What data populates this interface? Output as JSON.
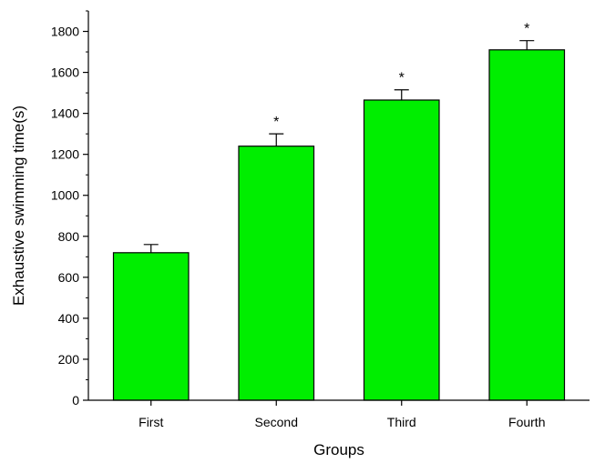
{
  "chart_data": {
    "type": "bar",
    "categories": [
      "First",
      "Second",
      "Third",
      "Fourth"
    ],
    "values": [
      720,
      1240,
      1465,
      1710
    ],
    "errors": [
      40,
      60,
      50,
      45
    ],
    "significance": [
      "",
      "*",
      "*",
      "*"
    ],
    "xlabel": "Groups",
    "ylabel": "Exhaustive swimming time(s)",
    "ylim": [
      0,
      1900
    ],
    "yticks": [
      0,
      200,
      400,
      600,
      800,
      1000,
      1200,
      1400,
      1600,
      1800
    ],
    "grid": false,
    "legend": "none",
    "bar_color": "#00ee00",
    "edge_color": "#000000"
  }
}
